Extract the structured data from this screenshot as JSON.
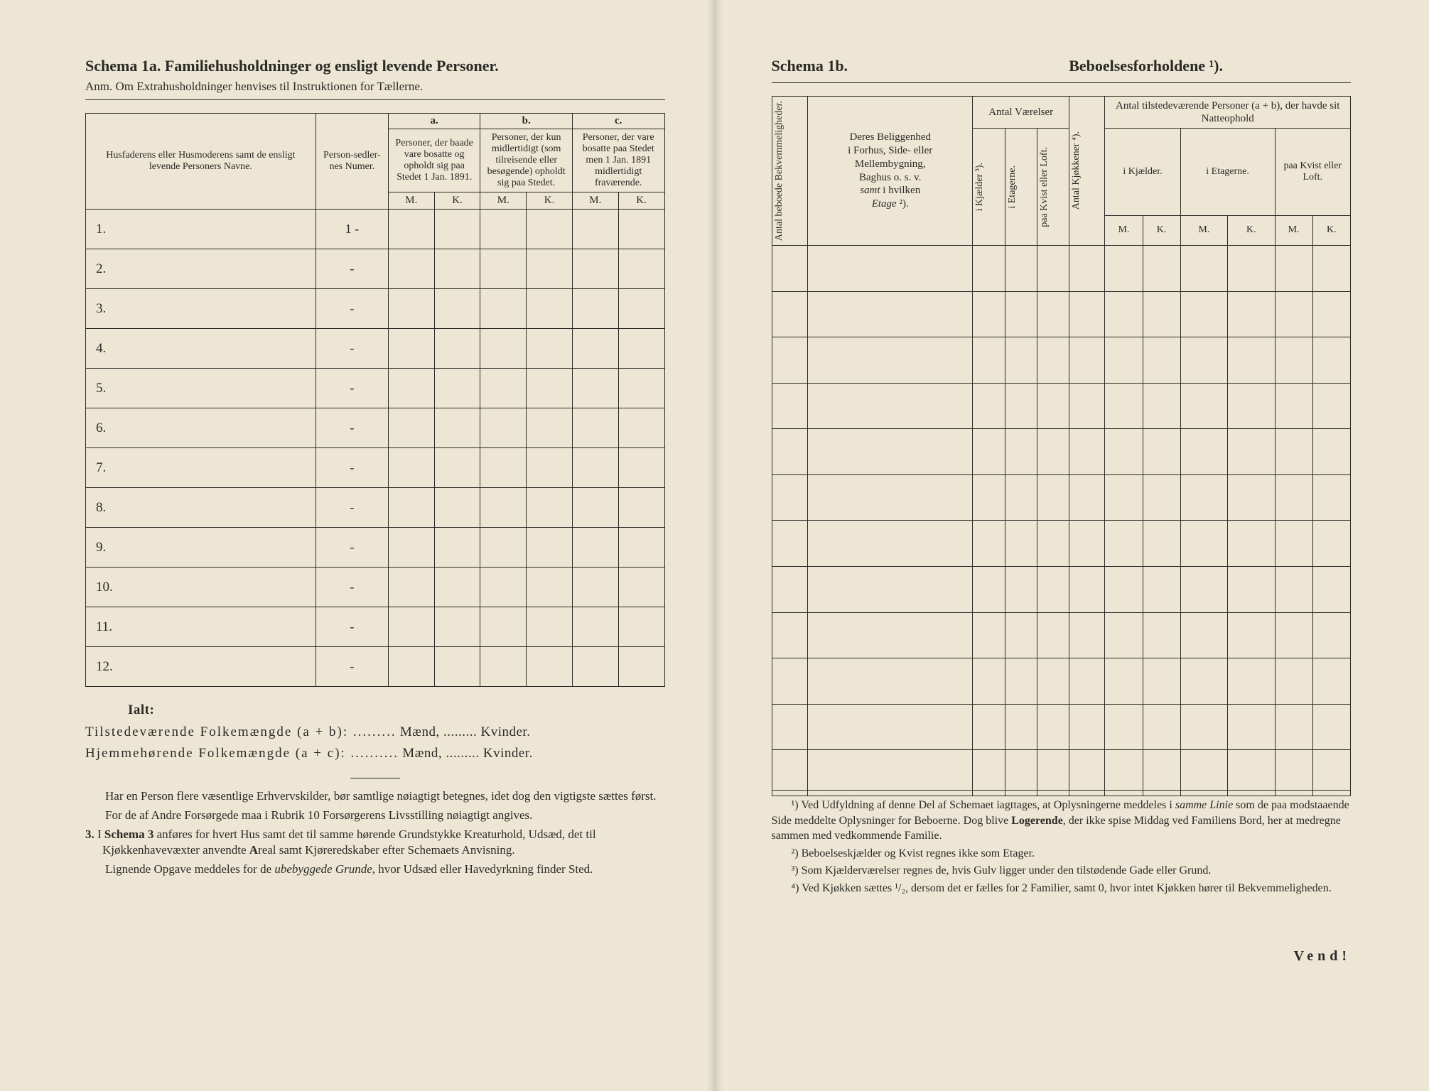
{
  "page_bg": "#ede6d4",
  "ink": "#2a2a26",
  "font_family": "Times New Roman",
  "left": {
    "title": "Schema 1a.  Familiehusholdninger og ensligt levende Personer.",
    "subtitle": "Anm.  Om Extrahusholdninger henvises til Instruktionen for Tællerne.",
    "colA_name": "Husfaderens eller Husmoderens samt de ensligt levende Personers Navne.",
    "colB_num": "Person-sedler-nes Numer.",
    "group_a_letter": "a.",
    "group_a_text": "Personer, der baade vare bosatte og opholdt sig paa Stedet 1 Jan. 1891.",
    "group_b_letter": "b.",
    "group_b_text": "Personer, der kun midlertidigt (som tilreisende eller besøgende) opholdt sig paa Stedet.",
    "group_c_letter": "c.",
    "group_c_text": "Personer, der vare bosatte paa Stedet men 1 Jan. 1891 midlertidigt fraværende.",
    "M": "M.",
    "K": "K.",
    "rows": [
      "1.",
      "2.",
      "3.",
      "4.",
      "5.",
      "6.",
      "7.",
      "8.",
      "9.",
      "10.",
      "11.",
      "12."
    ],
    "row1_num": "1",
    "dash": "-",
    "ialt": "Ialt:",
    "sum1_a": "Tilstedeværende Folkemængde (a + b): .........",
    "sum1_b": "Mænd, .........",
    "sum1_c": "Kvinder.",
    "sum2_a": "Hjemmehørende Folkemængde (a + c): ..........",
    "sum2_b": "Mænd, .........",
    "sum2_c": "Kvinder.",
    "notes": [
      "Har en Person flere væsentlige Erhvervskilder, bør samtlige nøiagtigt betegnes, idet dog den vigtigste sættes først.",
      "For de af Andre Forsørgede maa i Rubrik 10 Forsørgerens Livsstilling nøiagtigt angives.",
      "3. I Schema 3 anføres for hvert Hus samt det til samme hørende Grundstykke Kreaturhold, Udsæd, det til Kjøkkenhavevæxter anvendte Areal samt Kjøreredskaber efter Schemaets Anvisning.",
      "Lignende Opgave meddeles for de ubebyggede Grunde, hvor Udsæd eller Havedyrkning finder Sted."
    ]
  },
  "right": {
    "title_left": "Schema 1b.",
    "title_right": "Beboelsesforholdene ¹).",
    "col_antal_bebo": "Antal beboede Bekvemmeligheder.",
    "col_location": "Deres Beliggenhed i Forhus, Side- eller Mellembygning, Baghus o. s. v. samt i hvilken Etage ²).",
    "grp_vaerelser": "Antal Værelser",
    "sub_kjaelder": "i Kjælder ³).",
    "sub_etagerne": "i Etagerne.",
    "sub_kvist": "paa Kvist eller Loft.",
    "col_kjokkener": "Antal Kjøkkener ⁴).",
    "grp_personer": "Antal tilstedeværende Personer (a + b), der havde sit Natteophold",
    "sub2_kjaelder": "i Kjælder.",
    "sub2_etagerne": "i Etagerne.",
    "sub2_kvist": "paa Kvist eller Loft.",
    "M": "M.",
    "K": "K.",
    "row_count": 12,
    "footnotes": [
      "¹) Ved Udfyldning af denne Del af Schemaet iagttages, at Oplysningerne meddeles i samme Linie som de paa modstaaende Side meddelte Oplysninger for Beboerne. Dog blive Logerende, der ikke spise Middag ved Familiens Bord, her at medregne sammen med vedkommende Familie.",
      "²) Beboelseskjælder og Kvist regnes ikke som Etager.",
      "³) Som Kjælderværelser regnes de, hvis Gulv ligger under den tilstødende Gade eller Grund.",
      "⁴) Ved Kjøkken sættes ¹/₂, dersom det er fælles for 2 Familier, samt 0, hvor intet Kjøkken hører til Bekvemmeligheden."
    ],
    "vend": "Vend!"
  }
}
